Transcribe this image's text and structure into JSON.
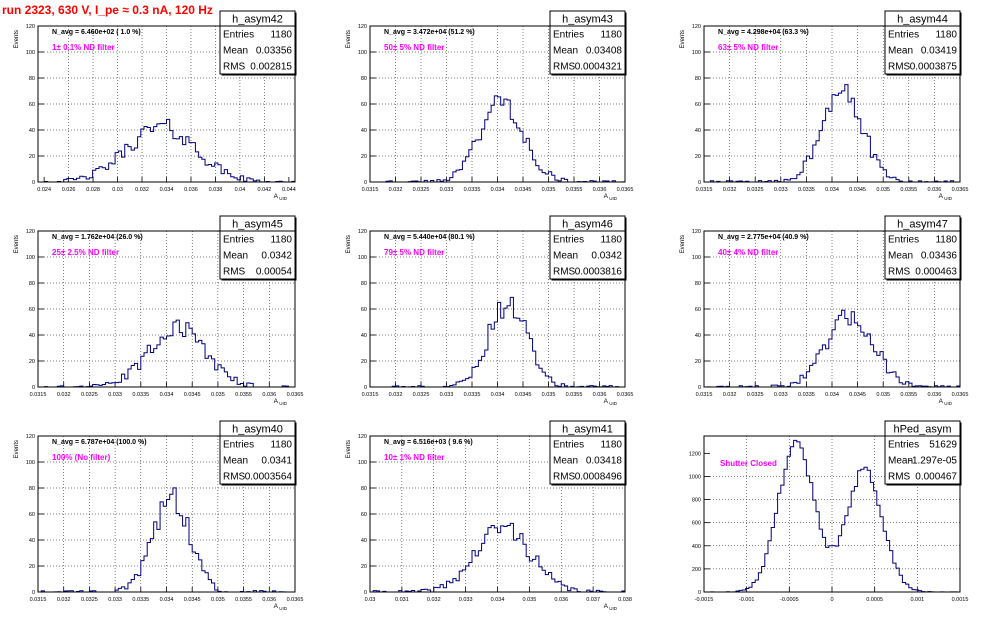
{
  "page_title": "run 2323,   630 V, I_pe ≈ 0.3 nA, 120 Hz",
  "colors": {
    "histogram": "#000080",
    "annotation": "#ff00ff",
    "title": "#ff0000",
    "grid": "#000000"
  },
  "chart_data": [
    {
      "type": "histogram",
      "name": "h_asym42",
      "stats": [
        [
          "Entries",
          "1180"
        ],
        [
          "Mean",
          "0.03356"
        ],
        [
          "RMS",
          "0.002815"
        ]
      ],
      "navg_text": "N_avg = 6.460e+02 ( 1.0 %)",
      "filter_text": "1± 0.1% ND filter",
      "ylabel": "Events",
      "xlabel": "A_UID",
      "xlim": [
        0.0235,
        0.0445
      ],
      "ylim": [
        0,
        120
      ],
      "xticks": [
        "0.024",
        "0.026",
        "0.028",
        "0.03",
        "0.032",
        "0.034",
        "0.036",
        "0.038",
        "0.04",
        "0.042",
        "0.044"
      ],
      "yticks": [
        "0",
        "20",
        "40",
        "60",
        "80",
        "100",
        "120"
      ],
      "dist": {
        "type": "gauss",
        "mu": 0.03356,
        "sigma": 0.002815,
        "peak": 42,
        "seed": 42
      }
    },
    {
      "type": "histogram",
      "name": "h_asym43",
      "stats": [
        [
          "Entries",
          "1180"
        ],
        [
          "Mean",
          "0.03408"
        ],
        [
          "RMS",
          "0.0004321"
        ]
      ],
      "navg_text": "N_avg = 3.472e+04 (51.2 %)",
      "filter_text": "50± 5% ND filter",
      "ylabel": "Events",
      "xlabel": "A_UID",
      "xlim": [
        0.0315,
        0.0365
      ],
      "ylim": [
        0,
        120
      ],
      "xticks": [
        "0.0315",
        "0.032",
        "0.0325",
        "0.033",
        "0.0335",
        "0.034",
        "0.0345",
        "0.035",
        "0.0355",
        "0.036",
        "0.0365"
      ],
      "yticks": [
        "0",
        "20",
        "40",
        "60",
        "80",
        "100",
        "120"
      ],
      "dist": {
        "type": "gauss",
        "mu": 0.03408,
        "sigma": 0.000432,
        "peak": 62,
        "seed": 43
      }
    },
    {
      "type": "histogram",
      "name": "h_asym44",
      "stats": [
        [
          "Entries",
          "1180"
        ],
        [
          "Mean",
          "0.03419"
        ],
        [
          "RMS",
          "0.0003875"
        ]
      ],
      "navg_text": "N_avg = 4.298e+04 (63.3 %)",
      "filter_text": "63± 5% ND filter",
      "ylabel": "Events",
      "xlabel": "A_UID",
      "xlim": [
        0.0315,
        0.0365
      ],
      "ylim": [
        0,
        120
      ],
      "xticks": [
        "0.0315",
        "0.032",
        "0.0325",
        "0.033",
        "0.0335",
        "0.034",
        "0.0345",
        "0.035",
        "0.0355",
        "0.036",
        "0.0365"
      ],
      "yticks": [
        "0",
        "20",
        "40",
        "60",
        "80",
        "100",
        "120"
      ],
      "dist": {
        "type": "gauss",
        "mu": 0.03419,
        "sigma": 0.000388,
        "peak": 74,
        "seed": 44
      }
    },
    {
      "type": "histogram",
      "name": "h_asym45",
      "stats": [
        [
          "Entries",
          "1180"
        ],
        [
          "Mean",
          "0.0342"
        ],
        [
          "RMS",
          "0.00054"
        ]
      ],
      "navg_text": "N_avg = 1.762e+04 (26.0 %)",
      "filter_text": "25± 2.5% ND filter",
      "ylabel": "Events",
      "xlabel": "A_UID",
      "xlim": [
        0.0315,
        0.0365
      ],
      "ylim": [
        0,
        120
      ],
      "xticks": [
        "0.0315",
        "0.032",
        "0.0325",
        "0.033",
        "0.0335",
        "0.034",
        "0.0345",
        "0.035",
        "0.0355",
        "0.036",
        "0.0365"
      ],
      "yticks": [
        "0",
        "20",
        "40",
        "60",
        "80",
        "100",
        "120"
      ],
      "dist": {
        "type": "gauss",
        "mu": 0.0342,
        "sigma": 0.00054,
        "peak": 46,
        "seed": 45
      }
    },
    {
      "type": "histogram",
      "name": "h_asym46",
      "stats": [
        [
          "Entries",
          "1180"
        ],
        [
          "Mean",
          "0.0342"
        ],
        [
          "RMS",
          "0.0003816"
        ]
      ],
      "navg_text": "N_avg = 5.440e+04 (80.1 %)",
      "filter_text": "79± 5% ND filter",
      "ylabel": "Events",
      "xlabel": "A_UID",
      "xlim": [
        0.0315,
        0.0365
      ],
      "ylim": [
        0,
        120
      ],
      "xticks": [
        "0.0315",
        "0.032",
        "0.0325",
        "0.033",
        "0.0335",
        "0.034",
        "0.0345",
        "0.035",
        "0.0355",
        "0.036",
        "0.0365"
      ],
      "yticks": [
        "0",
        "20",
        "40",
        "60",
        "80",
        "100",
        "120"
      ],
      "dist": {
        "type": "gauss",
        "mu": 0.0342,
        "sigma": 0.00038,
        "peak": 64,
        "seed": 46
      }
    },
    {
      "type": "histogram",
      "name": "h_asym47",
      "stats": [
        [
          "Entries",
          "1180"
        ],
        [
          "Mean",
          "0.03436"
        ],
        [
          "RMS",
          "0.000463"
        ]
      ],
      "navg_text": "N_avg = 2.775e+04 (40.9 %)",
      "filter_text": "40± 4% ND filter",
      "ylabel": "Events",
      "xlabel": "A_UID",
      "xlim": [
        0.0315,
        0.0365
      ],
      "ylim": [
        0,
        120
      ],
      "xticks": [
        "0.0315",
        "0.032",
        "0.0325",
        "0.033",
        "0.0335",
        "0.034",
        "0.0345",
        "0.035",
        "0.0355",
        "0.036",
        "0.0365"
      ],
      "yticks": [
        "0",
        "20",
        "40",
        "60",
        "80",
        "100",
        "120"
      ],
      "dist": {
        "type": "gauss",
        "mu": 0.03436,
        "sigma": 0.00046,
        "peak": 54,
        "seed": 47
      }
    },
    {
      "type": "histogram",
      "name": "h_asym40",
      "stats": [
        [
          "Entries",
          "1180"
        ],
        [
          "Mean",
          "0.0341"
        ],
        [
          "RMS",
          "0.0003564"
        ]
      ],
      "navg_text": "N_avg = 6.787e+04 (100.0 %)",
      "filter_text": "100% (No filter)",
      "ylabel": "Events",
      "xlabel": "A_UID",
      "xlim": [
        0.0315,
        0.0365
      ],
      "ylim": [
        0,
        120
      ],
      "xticks": [
        "0.0315",
        "0.032",
        "0.0325",
        "0.033",
        "0.0335",
        "0.034",
        "0.0345",
        "0.035",
        "0.0355",
        "0.036",
        "0.0365"
      ],
      "yticks": [
        "0",
        "20",
        "40",
        "60",
        "80",
        "100",
        "120"
      ],
      "dist": {
        "type": "gauss",
        "mu": 0.0341,
        "sigma": 0.000356,
        "peak": 72,
        "seed": 40
      }
    },
    {
      "type": "histogram",
      "name": "h_asym41",
      "stats": [
        [
          "Entries",
          "1180"
        ],
        [
          "Mean",
          "0.03418"
        ],
        [
          "RMS",
          "0.0008496"
        ]
      ],
      "navg_text": "N_avg = 6.516e+03 ( 9.6 %)",
      "filter_text": "10± 1% ND filter",
      "ylabel": "Events",
      "xlabel": "A_UID",
      "xlim": [
        0.03,
        0.038
      ],
      "ylim": [
        0,
        120
      ],
      "xticks": [
        "0.03",
        "0.031",
        "0.032",
        "0.033",
        "0.034",
        "0.035",
        "0.036",
        "0.037",
        "0.038"
      ],
      "yticks": [
        "0",
        "20",
        "40",
        "60",
        "80",
        "100",
        "120"
      ],
      "dist": {
        "type": "gauss",
        "mu": 0.03418,
        "sigma": 0.00085,
        "peak": 50,
        "seed": 41
      }
    },
    {
      "type": "histogram",
      "name": "hPed_asym",
      "stats": [
        [
          "Entries",
          "51629"
        ],
        [
          "Mean",
          "-1.297e-05"
        ],
        [
          "RMS",
          "0.000467"
        ]
      ],
      "navg_text": "",
      "filter_text": "Shutter Closed",
      "ylabel": "",
      "xlabel": "",
      "xlim": [
        -0.0015,
        0.0015
      ],
      "ylim": [
        0,
        1350
      ],
      "xticks": [
        "-0.0015",
        "-0.001",
        "-0.0005",
        "0",
        "0.0005",
        "0.001",
        "0.0015"
      ],
      "yticks": [
        "0",
        "200",
        "400",
        "600",
        "800",
        "1000",
        "1200"
      ],
      "dist": {
        "type": "double",
        "mu1": -0.00042,
        "mu2": 0.00038,
        "sigma": 0.00021,
        "peak1": 1290,
        "peak2": 1050,
        "seed": 9
      }
    }
  ]
}
